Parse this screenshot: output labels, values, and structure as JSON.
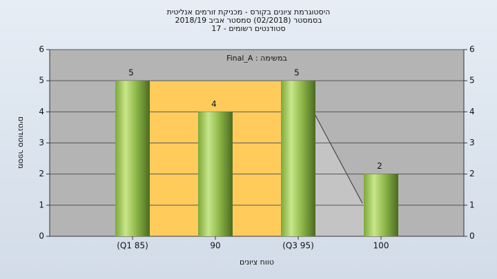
{
  "chart_data": {
    "type": "bar",
    "title": "היסטוגרמת ציונים בקורס - מכניקת זורמים אנליטית",
    "subtitle": "בסמסטר  (02/2018)  סמסטר אביב 2018/19",
    "subtitle2": "סטודנטים רשומים - 17",
    "annotation": "במשימה : Final_A",
    "x_label": "טווח ציונים",
    "y_label": "מספר סטודנטים",
    "categories": [
      "(Q1 85)",
      "90",
      "(Q3 95)",
      "100"
    ],
    "values": [
      5,
      4,
      5,
      2
    ],
    "color": "#8cbf3f",
    "ylim": [
      0,
      6
    ],
    "yticks": [
      0,
      1,
      2,
      3,
      4,
      5,
      6
    ],
    "grid": true
  }
}
